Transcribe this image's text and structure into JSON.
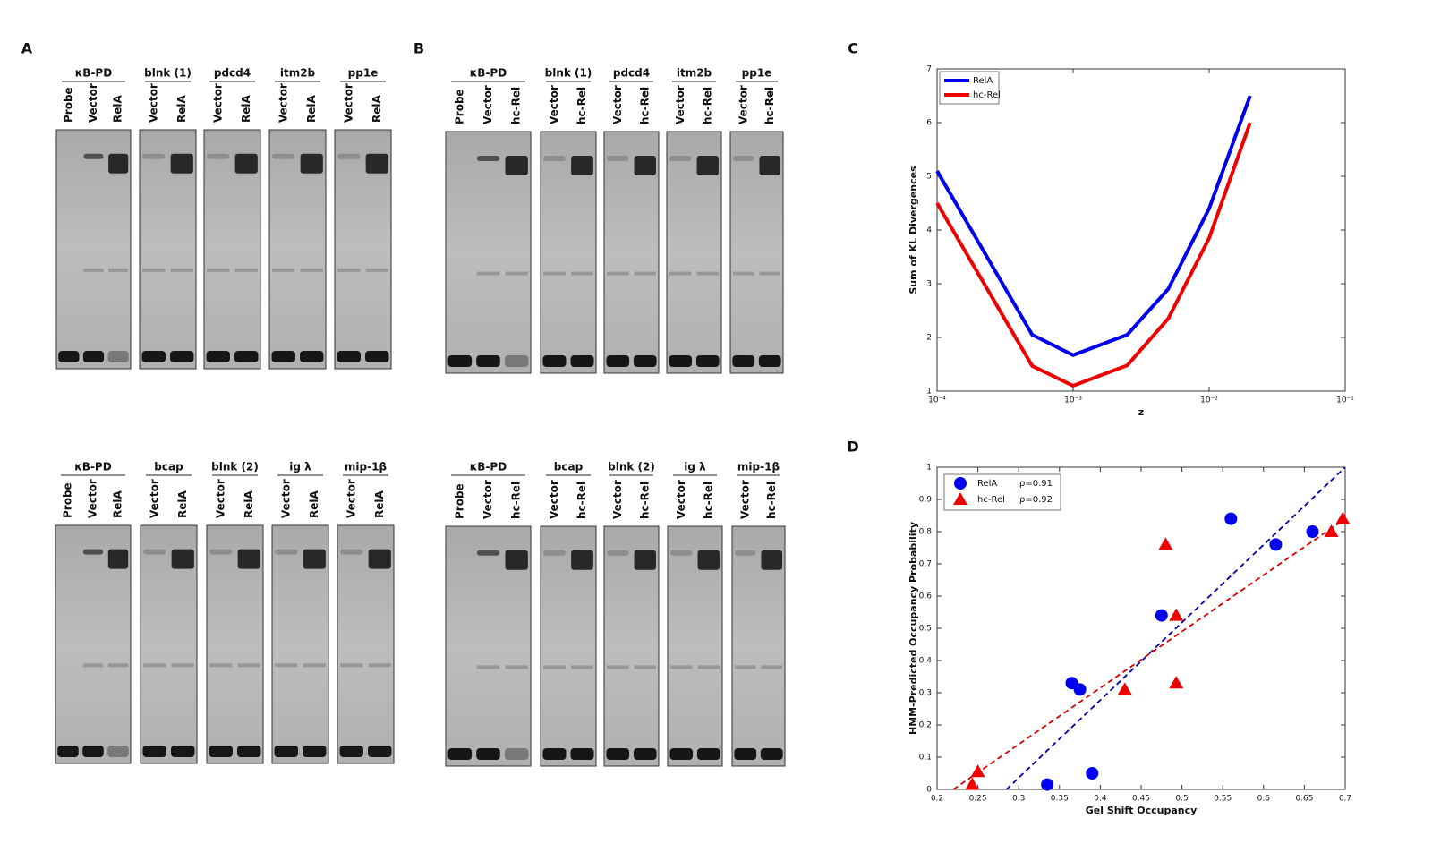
{
  "labels": [
    "A",
    "B",
    "C",
    "D"
  ],
  "gels": [
    {
      "groups": [
        {
          "name": "κB-PD",
          "lanes": [
            "Probe",
            "Vector",
            "RelA"
          ]
        },
        {
          "name": "blnk (1)",
          "lanes": [
            "Vector",
            "RelA"
          ]
        },
        {
          "name": "pdcd4",
          "lanes": [
            "Vector",
            "RelA"
          ]
        },
        {
          "name": "itm2b",
          "lanes": [
            "Vector",
            "RelA"
          ]
        },
        {
          "name": "pp1e",
          "lanes": [
            "Vector",
            "RelA"
          ]
        }
      ]
    },
    {
      "groups": [
        {
          "name": "κB-PD",
          "lanes": [
            "Probe",
            "Vector",
            "RelA"
          ]
        },
        {
          "name": "bcap",
          "lanes": [
            "Vector",
            "RelA"
          ]
        },
        {
          "name": "blnk (2)",
          "lanes": [
            "Vector",
            "RelA"
          ]
        },
        {
          "name": "ig λ",
          "lanes": [
            "Vector",
            "RelA"
          ]
        },
        {
          "name": "mip-1β",
          "lanes": [
            "Vector",
            "RelA"
          ]
        }
      ]
    },
    {
      "groups": [
        {
          "name": "κB-PD",
          "lanes": [
            "Probe",
            "Vector",
            "hc-Rel"
          ]
        },
        {
          "name": "blnk (1)",
          "lanes": [
            "Vector",
            "hc-Rel"
          ]
        },
        {
          "name": "pdcd4",
          "lanes": [
            "Vector",
            "hc-Rel"
          ]
        },
        {
          "name": "itm2b",
          "lanes": [
            "Vector",
            "hc-Rel"
          ]
        },
        {
          "name": "pp1e",
          "lanes": [
            "Vector",
            "hc-Rel"
          ]
        }
      ]
    },
    {
      "groups": [
        {
          "name": "κB-PD",
          "lanes": [
            "Probe",
            "Vector",
            "hc-Rel"
          ]
        },
        {
          "name": "bcap",
          "lanes": [
            "Vector",
            "hc-Rel"
          ]
        },
        {
          "name": "blnk (2)",
          "lanes": [
            "Vector",
            "hc-Rel"
          ]
        },
        {
          "name": "ig λ",
          "lanes": [
            "Vector",
            "hc-Rel"
          ]
        },
        {
          "name": "mip-1β",
          "lanes": [
            "Vector",
            "hc-Rel"
          ]
        }
      ]
    }
  ],
  "chart_data": [
    {
      "type": "line",
      "xlabel": "z",
      "ylabel": "Sum of KL Divergences",
      "log_x": true,
      "legend": "top-left",
      "x": [
        0.0001,
        0.0005,
        0.001,
        0.0025,
        0.005,
        0.01,
        0.02
      ],
      "series": [
        {
          "name": "RelA",
          "color": "#0000ee",
          "values": [
            5.1,
            2.05,
            1.67,
            2.05,
            2.9,
            4.4,
            6.5
          ]
        },
        {
          "name": "hc-Rel",
          "color": "#ee0000",
          "values": [
            4.5,
            1.47,
            1.1,
            1.48,
            2.35,
            3.85,
            6.0
          ]
        }
      ],
      "xlim": [
        0.0001,
        0.1
      ],
      "xticks": [
        {
          "value": 0.0001,
          "label": "10⁻⁴"
        },
        {
          "value": 0.001,
          "label": "10⁻³"
        },
        {
          "value": 0.01,
          "label": "10⁻²"
        },
        {
          "value": 0.1,
          "label": "10⁻¹"
        }
      ],
      "ylim": [
        1,
        7
      ],
      "yticks": [
        1,
        2,
        3,
        4,
        5,
        6,
        7
      ]
    },
    {
      "type": "scatter",
      "xlabel": "Gel Shift Occupancy",
      "ylabel": "HMM-Predicted Occupancy Probability",
      "legend": "top-left",
      "series": [
        {
          "name": "RelA",
          "label": "ρ=0.91",
          "color": "#0000ee",
          "marker": "circle",
          "x": [
            0.335,
            0.39,
            0.365,
            0.375,
            0.475,
            0.56,
            0.615,
            0.66
          ],
          "values": [
            0.015,
            0.05,
            0.33,
            0.31,
            0.54,
            0.84,
            0.76,
            0.8
          ]
        },
        {
          "name": "hc-Rel",
          "label": "ρ=0.92",
          "color": "#ee0000",
          "marker": "triangle",
          "x": [
            0.243,
            0.25,
            0.43,
            0.48,
            0.493,
            0.493,
            0.683,
            0.697
          ],
          "values": [
            0.015,
            0.055,
            0.31,
            0.76,
            0.54,
            0.33,
            0.8,
            0.84
          ]
        }
      ],
      "fits": [
        {
          "color": "#0000aa",
          "x": [
            0.285,
            0.7
          ],
          "y": [
            0,
            1
          ]
        },
        {
          "color": "#dd0000",
          "x": [
            0.22,
            0.7
          ],
          "y": [
            0,
            0.84
          ]
        }
      ],
      "xlim": [
        0.2,
        0.7
      ],
      "xticks": [
        0.2,
        0.25,
        0.3,
        0.35,
        0.4,
        0.45,
        0.5,
        0.55,
        0.6,
        0.65,
        0.7
      ],
      "ylim": [
        0,
        1
      ],
      "yticks": [
        0,
        0.1,
        0.2,
        0.3,
        0.4,
        0.5,
        0.6,
        0.7,
        0.8,
        0.9,
        1
      ]
    }
  ]
}
